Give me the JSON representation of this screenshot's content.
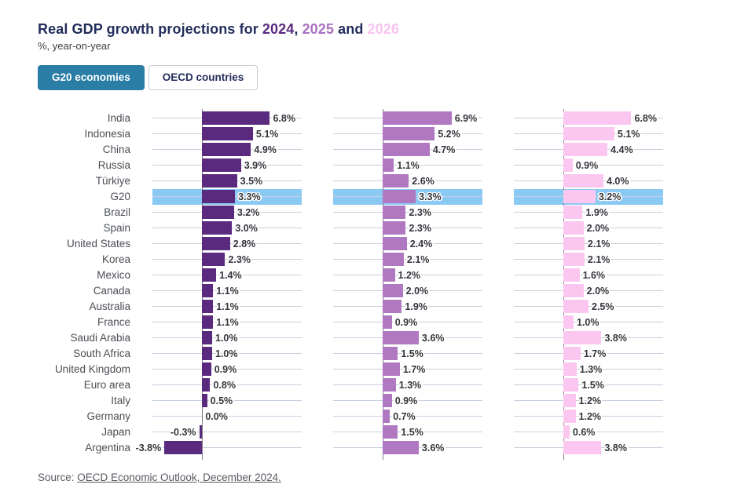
{
  "header": {
    "title_prefix": "Real GDP growth projections for ",
    "title_separator": ", ",
    "title_conjunction": " and ",
    "years": [
      {
        "label": "2024",
        "color": "#5a2a7e"
      },
      {
        "label": "2025",
        "color": "#a96fc2"
      },
      {
        "label": "2026",
        "color": "#f9c3ef"
      }
    ],
    "subtitle": "%, year-on-year"
  },
  "toggle": {
    "g20_label": "G20 economies",
    "oecd_label": "OECD countries",
    "active_bg": "#2a7ea6"
  },
  "chart_data": {
    "type": "bar",
    "orientation": "horizontal",
    "unit": "%",
    "title": "Real GDP growth projections for 2024, 2025 and 2026",
    "xlim": [
      -5,
      10
    ],
    "grid": true,
    "highlight_category": "G20",
    "highlight_color": "#8bc9f5",
    "categories": [
      "India",
      "Indonesia",
      "China",
      "Russia",
      "Türkiye",
      "G20",
      "Brazil",
      "Spain",
      "United States",
      "Korea",
      "Mexico",
      "Canada",
      "Australia",
      "France",
      "Saudi Arabia",
      "South Africa",
      "United Kingdom",
      "Euro area",
      "Italy",
      "Germany",
      "Japan",
      "Argentina"
    ],
    "series": [
      {
        "name": "2024",
        "color": "#5a2a7e",
        "values": [
          6.8,
          5.1,
          4.9,
          3.9,
          3.5,
          3.3,
          3.2,
          3.0,
          2.8,
          2.3,
          1.4,
          1.1,
          1.1,
          1.1,
          1.0,
          1.0,
          0.9,
          0.8,
          0.5,
          0.0,
          -0.3,
          -3.8
        ]
      },
      {
        "name": "2025",
        "color": "#b178c2",
        "values": [
          6.9,
          5.2,
          4.7,
          1.1,
          2.6,
          3.3,
          2.3,
          2.3,
          2.4,
          2.1,
          1.2,
          2.0,
          1.9,
          0.9,
          3.6,
          1.5,
          1.7,
          1.3,
          0.9,
          0.7,
          1.5,
          3.6
        ]
      },
      {
        "name": "2026",
        "color": "#fbc7f0",
        "values": [
          6.8,
          5.1,
          4.4,
          0.9,
          4.0,
          3.2,
          1.9,
          2.0,
          2.1,
          2.1,
          1.6,
          2.0,
          2.5,
          1.0,
          3.8,
          1.7,
          1.3,
          1.5,
          1.2,
          1.2,
          0.6,
          3.8
        ]
      }
    ]
  },
  "source": {
    "prefix": "Source: ",
    "link_text": "OECD Economic Outlook, December 2024."
  }
}
